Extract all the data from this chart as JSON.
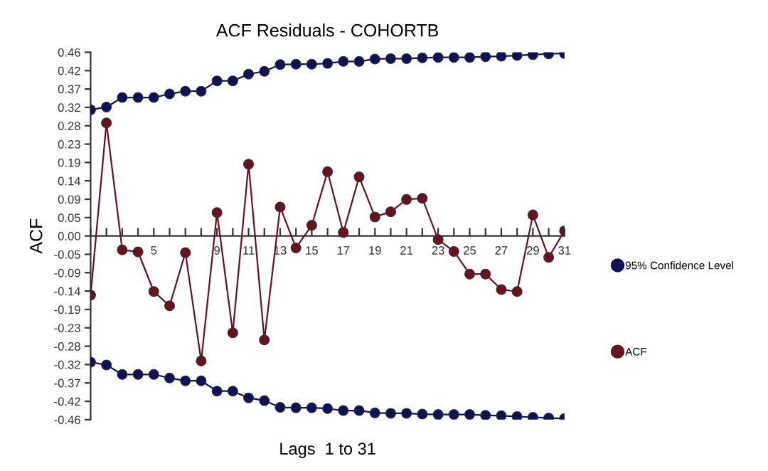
{
  "chart_data": {
    "type": "line",
    "title": "ACF Residuals - COHORTB",
    "xlabel": "Lags  1 to 31",
    "ylabel": "ACF",
    "x": [
      1,
      2,
      3,
      4,
      5,
      6,
      7,
      8,
      9,
      10,
      11,
      12,
      13,
      14,
      15,
      16,
      17,
      18,
      19,
      20,
      21,
      22,
      23,
      24,
      25,
      26,
      27,
      28,
      29,
      30,
      31
    ],
    "series": [
      {
        "name": "95% Confidence Level",
        "color": "#10105a",
        "values": [
          0.318,
          0.325,
          0.349,
          0.349,
          0.349,
          0.358,
          0.365,
          0.365,
          0.391,
          0.391,
          0.408,
          0.415,
          0.432,
          0.433,
          0.433,
          0.435,
          0.44,
          0.44,
          0.446,
          0.447,
          0.447,
          0.449,
          0.45,
          0.45,
          0.45,
          0.452,
          0.453,
          0.455,
          0.457,
          0.459,
          0.46
        ]
      },
      {
        "color": "#10105a",
        "values": [
          -0.318,
          -0.325,
          -0.349,
          -0.349,
          -0.349,
          -0.358,
          -0.365,
          -0.365,
          -0.391,
          -0.391,
          -0.408,
          -0.415,
          -0.432,
          -0.433,
          -0.433,
          -0.435,
          -0.44,
          -0.44,
          -0.446,
          -0.447,
          -0.447,
          -0.449,
          -0.45,
          -0.45,
          -0.45,
          -0.452,
          -0.453,
          -0.455,
          -0.457,
          -0.459,
          -0.46
        ]
      },
      {
        "name": "ACF",
        "color": "#6b1020",
        "values": [
          -0.149,
          0.285,
          -0.035,
          -0.04,
          -0.14,
          -0.176,
          -0.042,
          -0.315,
          0.059,
          -0.244,
          0.181,
          -0.262,
          0.073,
          -0.03,
          0.027,
          0.162,
          0.009,
          0.149,
          0.048,
          0.061,
          0.092,
          0.095,
          -0.009,
          -0.039,
          -0.096,
          -0.096,
          -0.135,
          -0.14,
          0.053,
          -0.054,
          0.013
        ]
      }
    ],
    "xlim": [
      1,
      31
    ],
    "xticks": [
      {
        "value": 1,
        "label": null
      },
      {
        "value": 2,
        "label": null
      },
      {
        "value": 3,
        "label": null
      },
      {
        "value": 4,
        "label": null
      },
      5,
      {
        "value": 6,
        "label": null
      },
      {
        "value": 7,
        "label": null
      },
      {
        "value": 8,
        "label": null
      },
      9,
      {
        "value": 10,
        "label": null
      },
      11,
      {
        "value": 12,
        "label": null
      },
      13,
      {
        "value": 14,
        "label": null
      },
      15,
      {
        "value": 16,
        "label": null
      },
      17,
      {
        "value": 18,
        "label": null
      },
      19,
      {
        "value": 20,
        "label": null
      },
      21,
      {
        "value": 22,
        "label": null
      },
      23,
      {
        "value": 24,
        "label": null
      },
      25,
      {
        "value": 26,
        "label": null
      },
      27,
      {
        "value": 28,
        "label": null
      },
      29,
      {
        "value": 30,
        "label": null
      },
      31
    ],
    "ylim": [
      -0.463,
      0.463
    ],
    "yticks": [
      {
        "value": -0.463,
        "label": "-0.46"
      },
      {
        "value": -0.4167,
        "label": "-0.42"
      },
      {
        "value": -0.3704,
        "label": "-0.37"
      },
      {
        "value": -0.3241,
        "label": "-0.32"
      },
      {
        "value": -0.2778,
        "label": "-0.28"
      },
      {
        "value": -0.2315,
        "label": "-0.23"
      },
      {
        "value": -0.1852,
        "label": "-0.19"
      },
      {
        "value": -0.1389,
        "label": "-0.14"
      },
      {
        "value": -0.0926,
        "label": "-0.09"
      },
      {
        "value": -0.0463,
        "label": "-0.05"
      },
      {
        "value": 0,
        "label": "0.00"
      },
      {
        "value": 0.0463,
        "label": "0.05"
      },
      {
        "value": 0.0926,
        "label": "0.09"
      },
      {
        "value": 0.1389,
        "label": "0.14"
      },
      {
        "value": 0.1852,
        "label": "0.19"
      },
      {
        "value": 0.2315,
        "label": "0.23"
      },
      {
        "value": 0.2778,
        "label": "0.28"
      },
      {
        "value": 0.3241,
        "label": "0.32"
      },
      {
        "value": 0.3704,
        "label": "0.37"
      },
      {
        "value": 0.4167,
        "label": "0.42"
      },
      {
        "value": 0.463,
        "label": "0.46"
      }
    ],
    "grid": false,
    "legend": "right",
    "marker": "circle",
    "line_style": "solid"
  }
}
